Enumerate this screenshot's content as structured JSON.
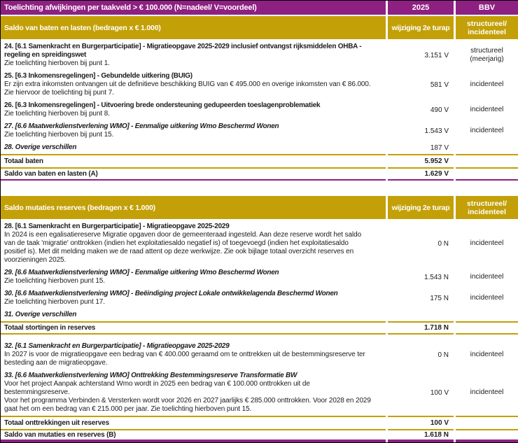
{
  "colors": {
    "purple": "#8e2082",
    "gold": "#c3a008",
    "text": "#1c1c1c"
  },
  "header": {
    "title": "Toelichting afwijkingen per taakveld > € 100.000  (N=nadeel/ V=voordeel)",
    "year": "2025",
    "bbv": "BBV"
  },
  "s1": {
    "band": "Saldo van baten en lasten (bedragen x € 1.000)",
    "col2": "wijziging 2e turap",
    "col3l1": "structureel/",
    "col3l2": "incidenteel",
    "r24": {
      "t1": "24. [6.1 Samenkracht en Burgerparticipatie] - Migratieopgave 2025-2029 inclusief ontvangst rijksmiddelen OHBA -",
      "t2": "regeling en spreidingswet",
      "note": "Zie toelichting hierboven bij punt 1.",
      "value": "3.151 V",
      "bbv1": "structureel",
      "bbv2": "(meerjarig)"
    },
    "r25": {
      "t": "25. [6.3 Inkomensregelingen] - Gebundelde uitkering (BUIG)",
      "d": "Er zijn extra inkomsten ontvangen uit de definitieve beschikking BUIG van € 495.000 en overige inkomsten van € 86.000.",
      "note": "Zie hiervoor de toelichting bij punt 7.",
      "value": "581 V",
      "bbv": "incidenteel"
    },
    "r26": {
      "t": "26. [6.3 Inkomensregelingen] - Uitvoering brede ondersteuning gedupeerden toeslagenproblematiek",
      "note": "Zie toelichting hierboven bij punt 8.",
      "value": "490 V",
      "bbv": "incidenteel"
    },
    "r27": {
      "t": "27. [6.6 Maatwerkdienstverlening WMO] - Eenmalige uitkering Wmo Beschermd Wonen",
      "note": "Zie toelichting hierboven bij punt 15.",
      "value": "1.543 V",
      "bbv": "incidenteel"
    },
    "r28": {
      "t": "28. Overige verschillen",
      "value": "187 V"
    },
    "tot_baten": {
      "label": "Totaal baten",
      "value": "5.952 V"
    },
    "saldo_a": {
      "label": "Saldo van baten en lasten (A)",
      "value": "1.629 V"
    }
  },
  "s2": {
    "band": "Saldo mutaties reserves (bedragen x € 1.000)",
    "col2": "wijziging 2e turap",
    "col3l1": "structureel/",
    "col3l2": "incidenteel",
    "r28": {
      "t": "28. [6.1 Samenkracht en Burgerparticipatie] - Migratieopgave 2025-2029",
      "d1": "In 2024 is een egalisatiereserve Migratie opgaven door de gemeenteraad ingesteld. Aan deze reserve wordt het saldo",
      "d2": "van de taak 'migratie' onttrokken (indien het exploitatiesaldo negatief is) of toegevoegd (indien het exploitatiesaldo",
      "d3": "positief is). Met dit melding maken we de raad attent op deze werkwijze. Zie ook bijlage totaal overzicht reserves en",
      "d4": "voorzieningen 2025.",
      "value": "0 N",
      "bbv": "incidenteel"
    },
    "r29": {
      "t": "29. [6.6 Maatwerkdienstverlening WMO] - Eenmalige uitkering Wmo Beschermd Wonen",
      "note": "Zie toelichting hierboven punt 15.",
      "value": "1.543 N",
      "bbv": "incidenteel"
    },
    "r30": {
      "t": "30. [6.6 Maatwerkdienstverlening WMO] - Beëindiging project Lokale ontwikkelagenda Beschermd Wonen",
      "note": "Zie toelichting hierboven punt 17.",
      "value": "175 N",
      "bbv": "incidenteel"
    },
    "r31": {
      "t": "31. Overige verschillen"
    },
    "tot_stortingen": {
      "label": "Totaal stortingen in reserves",
      "value": "1.718 N"
    },
    "r32": {
      "t": "32. [6.1 Samenkracht en Burgerparticipatie] - Migratieopgave 2025-2029",
      "d1": "In 2027 is voor de migratieopgave een bedrag van € 400.000 geraamd om te onttrekken uit de bestemmingsreserve ter",
      "d2": "besteding aan de migratieopgave.",
      "value": "0 N",
      "bbv": "incidenteel"
    },
    "r33": {
      "t": "33. [6.6 Maatwerkdienstverlening WMO] Onttrekking Bestemmingsreserve Transformatie BW",
      "d1": "Voor het project Aanpak achterstand Wmo wordt in 2025 een bedrag van € 100.000 onttrokken uit de",
      "d2": "bestemmingsreserve.",
      "d3": "Voor het programma Verbinden & Versterken wordt voor 2026 en 2027 jaarlijks € 285.000 onttrokken. Voor 2028 en 2029",
      "d4": "gaat het om een bedrag van € 215.000 per jaar. Zie toelichting hierboven punt 15.",
      "value": "100 V",
      "bbv": "incidenteel"
    },
    "tot_onttrekkingen": {
      "label": "Totaal onttrekkingen uit reserves",
      "value": "100 V"
    },
    "saldo_b": {
      "label": "Saldo van mutaties en reserves (B)",
      "value": "1.618 N"
    }
  }
}
